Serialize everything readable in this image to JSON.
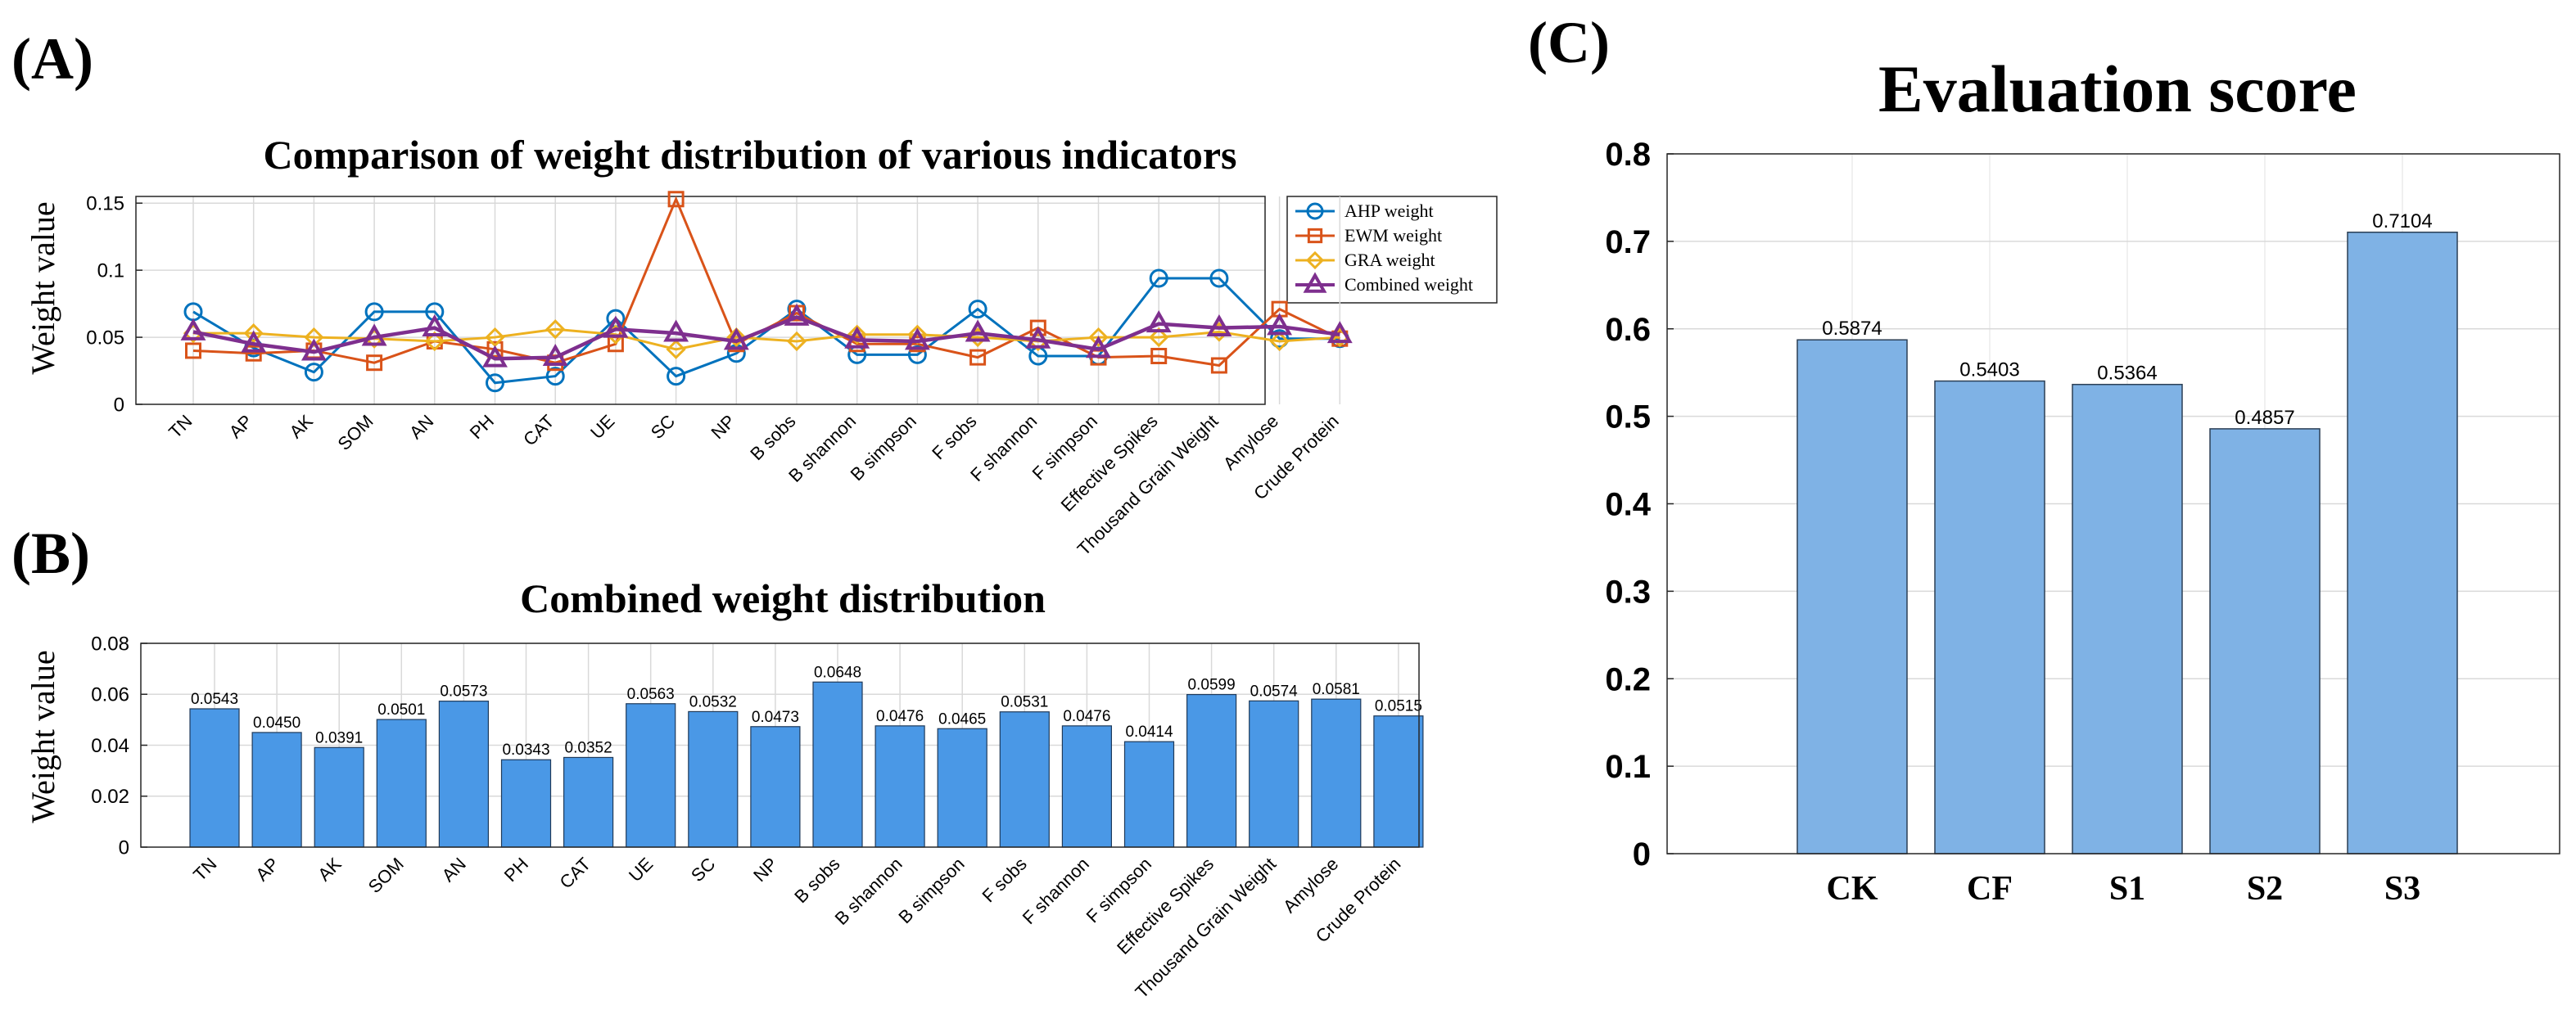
{
  "panel_labels": {
    "a": "(A)",
    "b": "(B)",
    "c": "(C)"
  },
  "colors": {
    "ahp": "#0072BD",
    "ewm": "#D95319",
    "gra": "#EDB120",
    "combined": "#7E2F8E",
    "bar_b": "#4A98E6",
    "bar_c": "#7FB2E5",
    "grid": "#d9d9d9",
    "axis": "#262626"
  },
  "chart_data": [
    {
      "id": "A",
      "type": "line",
      "title": "Comparison of weight distribution of various indicators",
      "ylabel": "Weight value",
      "xlabel": "",
      "ylim": [
        0,
        0.155
      ],
      "yticks": [
        0,
        0.05,
        0.1,
        0.15
      ],
      "ytick_labels": [
        "0",
        "0.05",
        "0.1",
        "0.15"
      ],
      "grid": true,
      "legend_position": "top-right",
      "categories": [
        "TN",
        "AP",
        "AK",
        "SOM",
        "AN",
        "PH",
        "CAT",
        "UE",
        "SC",
        "NP",
        "B sobs",
        "B shannon",
        "B simpson",
        "F sobs",
        "F shannon",
        "F simpson",
        "Effective Spikes",
        "Thousand Grain Weight",
        "Amylose",
        "Crude Protein"
      ],
      "series": [
        {
          "name": "AHP weight",
          "marker": "circle",
          "values": [
            0.069,
            0.042,
            0.024,
            0.069,
            0.069,
            0.016,
            0.021,
            0.064,
            0.021,
            0.038,
            0.071,
            0.037,
            0.037,
            0.071,
            0.036,
            0.036,
            0.094,
            0.094,
            0.049,
            0.049
          ]
        },
        {
          "name": "EWM weight",
          "marker": "square",
          "values": [
            0.04,
            0.038,
            0.04,
            0.031,
            0.047,
            0.041,
            0.031,
            0.045,
            0.153,
            0.045,
            0.068,
            0.045,
            0.045,
            0.035,
            0.057,
            0.035,
            0.036,
            0.029,
            0.071,
            0.049
          ]
        },
        {
          "name": "GRA weight",
          "marker": "diamond",
          "values": [
            0.053,
            0.053,
            0.05,
            0.049,
            0.047,
            0.05,
            0.056,
            0.052,
            0.041,
            0.05,
            0.047,
            0.052,
            0.052,
            0.05,
            0.047,
            0.05,
            0.05,
            0.054,
            0.047,
            0.05
          ]
        },
        {
          "name": "Combined weight",
          "marker": "triangle",
          "values": [
            0.054,
            0.045,
            0.039,
            0.05,
            0.057,
            0.034,
            0.035,
            0.056,
            0.053,
            0.047,
            0.065,
            0.048,
            0.047,
            0.053,
            0.048,
            0.041,
            0.06,
            0.057,
            0.058,
            0.052
          ]
        }
      ]
    },
    {
      "id": "B",
      "type": "bar",
      "title": "Combined weight distribution",
      "ylabel": "Weight value",
      "xlabel": "",
      "ylim": [
        0,
        0.08
      ],
      "yticks": [
        0,
        0.02,
        0.04,
        0.06,
        0.08
      ],
      "ytick_labels": [
        "0",
        "0.02",
        "0.04",
        "0.06",
        "0.08"
      ],
      "grid": true,
      "categories": [
        "TN",
        "AP",
        "AK",
        "SOM",
        "AN",
        "PH",
        "CAT",
        "UE",
        "SC",
        "NP",
        "B sobs",
        "B shannon",
        "B simpson",
        "F sobs",
        "F shannon",
        "F simpson",
        "Effective Spikes",
        "Thousand Grain Weight",
        "Amylose",
        "Crude Protein"
      ],
      "values": [
        0.0543,
        0.045,
        0.0391,
        0.0501,
        0.0573,
        0.0343,
        0.0352,
        0.0563,
        0.0532,
        0.0473,
        0.0648,
        0.0476,
        0.0465,
        0.0531,
        0.0476,
        0.0414,
        0.0599,
        0.0574,
        0.0581,
        0.0515
      ],
      "value_labels": [
        "0.0543",
        "0.0450",
        "0.0391",
        "0.0501",
        "0.0573",
        "0.0343",
        "0.0352",
        "0.0563",
        "0.0532",
        "0.0473",
        "0.0648",
        "0.0476",
        "0.0465",
        "0.0531",
        "0.0476",
        "0.0414",
        "0.0599",
        "0.0574",
        "0.0581",
        "0.0515"
      ]
    },
    {
      "id": "C",
      "type": "bar",
      "title": "Evaluation score",
      "ylabel": "",
      "xlabel": "",
      "ylim": [
        0,
        0.8
      ],
      "yticks": [
        0,
        0.1,
        0.2,
        0.3,
        0.4,
        0.5,
        0.6,
        0.7,
        0.8
      ],
      "ytick_labels": [
        "0",
        "0.1",
        "0.2",
        "0.3",
        "0.4",
        "0.5",
        "0.6",
        "0.7",
        "0.8"
      ],
      "grid": true,
      "categories": [
        "CK",
        "CF",
        "S1",
        "S2",
        "S3"
      ],
      "values": [
        0.5874,
        0.5403,
        0.5364,
        0.4857,
        0.7104
      ],
      "value_labels": [
        "0.5874",
        "0.5403",
        "0.5364",
        "0.4857",
        "0.7104"
      ]
    }
  ]
}
